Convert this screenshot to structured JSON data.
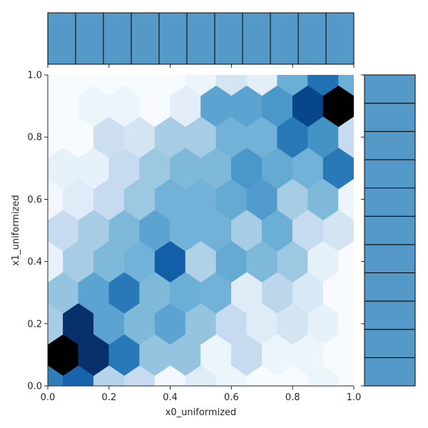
{
  "chart_data": {
    "type": "heatmap",
    "subtype": "hexbin-joint-plot",
    "title": "",
    "xlabel": "x0_uniformized",
    "ylabel": "x1_uniformized",
    "xlim": [
      0.0,
      1.0
    ],
    "ylim": [
      0.0,
      1.0
    ],
    "xticks": [
      "0.0",
      "0.2",
      "0.4",
      "0.6",
      "0.8",
      "1.0"
    ],
    "yticks": [
      "0.0",
      "0.2",
      "0.4",
      "0.6",
      "0.8",
      "1.0"
    ],
    "grid": false,
    "colormap": "Blues",
    "bar_color": "#5499c7",
    "marginal_x": {
      "orientation": "vertical",
      "bins": 11,
      "bin_edges": [
        0.0,
        0.0909,
        0.1818,
        0.2727,
        0.3636,
        0.4545,
        0.5455,
        0.6364,
        0.7273,
        0.8182,
        0.9091,
        1.0
      ],
      "counts_relative": [
        1,
        1,
        1,
        1,
        1,
        1,
        1,
        1,
        1,
        1,
        1
      ]
    },
    "marginal_y": {
      "orientation": "horizontal",
      "bins": 11,
      "bin_edges": [
        0.0,
        0.0909,
        0.1818,
        0.2727,
        0.3636,
        0.4545,
        0.5455,
        0.6364,
        0.7273,
        0.8182,
        0.9091,
        1.0
      ],
      "counts_relative": [
        1,
        1,
        1,
        1,
        1,
        1,
        1,
        1,
        1,
        1,
        1
      ]
    },
    "hexbin": {
      "gridsize": 10,
      "row_y": [
        0.0,
        0.1,
        0.2,
        0.3,
        0.4,
        0.5,
        0.6,
        0.7,
        0.8,
        0.9,
        1.0
      ],
      "even_row_x": [
        0.0,
        0.1,
        0.2,
        0.3,
        0.4,
        0.5,
        0.6,
        0.7,
        0.8,
        0.9,
        1.0
      ],
      "odd_row_x": [
        0.05,
        0.15,
        0.25,
        0.35,
        0.45,
        0.55,
        0.65,
        0.75,
        0.85,
        0.95
      ],
      "cells": [
        {
          "x": 0.0,
          "y": 0.0,
          "v": 0.7
        },
        {
          "x": 0.1,
          "y": 0.0,
          "v": 0.8
        },
        {
          "x": 0.2,
          "y": 0.0,
          "v": 0.3
        },
        {
          "x": 0.3,
          "y": 0.0,
          "v": 0.25
        },
        {
          "x": 0.4,
          "y": 0.0,
          "v": 0.02
        },
        {
          "x": 0.5,
          "y": 0.0,
          "v": 0.12
        },
        {
          "x": 0.6,
          "y": 0.0,
          "v": 0.05
        },
        {
          "x": 0.7,
          "y": 0.0,
          "v": 0.0
        },
        {
          "x": 0.8,
          "y": 0.0,
          "v": 0.0
        },
        {
          "x": 0.9,
          "y": 0.0,
          "v": 0.05
        },
        {
          "x": 1.0,
          "y": 0.0,
          "v": 0.0
        },
        {
          "x": 0.05,
          "y": 0.1,
          "v": 1.0
        },
        {
          "x": 0.15,
          "y": 0.1,
          "v": 0.95
        },
        {
          "x": 0.25,
          "y": 0.1,
          "v": 0.72
        },
        {
          "x": 0.35,
          "y": 0.1,
          "v": 0.4
        },
        {
          "x": 0.45,
          "y": 0.1,
          "v": 0.4
        },
        {
          "x": 0.55,
          "y": 0.1,
          "v": 0.05
        },
        {
          "x": 0.65,
          "y": 0.1,
          "v": 0.25
        },
        {
          "x": 0.75,
          "y": 0.1,
          "v": 0.05
        },
        {
          "x": 0.85,
          "y": 0.1,
          "v": 0.05
        },
        {
          "x": 0.95,
          "y": 0.1,
          "v": 0.0
        },
        {
          "x": 0.0,
          "y": 0.2,
          "v": 0.35
        },
        {
          "x": 0.1,
          "y": 0.2,
          "v": 0.95
        },
        {
          "x": 0.2,
          "y": 0.2,
          "v": 0.55
        },
        {
          "x": 0.3,
          "y": 0.2,
          "v": 0.45
        },
        {
          "x": 0.4,
          "y": 0.2,
          "v": 0.55
        },
        {
          "x": 0.5,
          "y": 0.2,
          "v": 0.4
        },
        {
          "x": 0.6,
          "y": 0.2,
          "v": 0.25
        },
        {
          "x": 0.7,
          "y": 0.2,
          "v": 0.12
        },
        {
          "x": 0.8,
          "y": 0.2,
          "v": 0.18
        },
        {
          "x": 0.9,
          "y": 0.2,
          "v": 0.08
        },
        {
          "x": 1.0,
          "y": 0.2,
          "v": 0.0
        },
        {
          "x": 0.05,
          "y": 0.3,
          "v": 0.4
        },
        {
          "x": 0.15,
          "y": 0.3,
          "v": 0.55
        },
        {
          "x": 0.25,
          "y": 0.3,
          "v": 0.72
        },
        {
          "x": 0.35,
          "y": 0.3,
          "v": 0.45
        },
        {
          "x": 0.45,
          "y": 0.3,
          "v": 0.5
        },
        {
          "x": 0.55,
          "y": 0.3,
          "v": 0.48
        },
        {
          "x": 0.65,
          "y": 0.3,
          "v": 0.12
        },
        {
          "x": 0.75,
          "y": 0.3,
          "v": 0.28
        },
        {
          "x": 0.85,
          "y": 0.3,
          "v": 0.15
        },
        {
          "x": 0.95,
          "y": 0.3,
          "v": 0.0
        },
        {
          "x": 0.0,
          "y": 0.4,
          "v": 0.08
        },
        {
          "x": 0.1,
          "y": 0.4,
          "v": 0.35
        },
        {
          "x": 0.2,
          "y": 0.4,
          "v": 0.45
        },
        {
          "x": 0.3,
          "y": 0.4,
          "v": 0.48
        },
        {
          "x": 0.4,
          "y": 0.4,
          "v": 0.82
        },
        {
          "x": 0.5,
          "y": 0.4,
          "v": 0.32
        },
        {
          "x": 0.6,
          "y": 0.4,
          "v": 0.52
        },
        {
          "x": 0.7,
          "y": 0.4,
          "v": 0.45
        },
        {
          "x": 0.8,
          "y": 0.4,
          "v": 0.38
        },
        {
          "x": 0.9,
          "y": 0.4,
          "v": 0.08
        },
        {
          "x": 1.0,
          "y": 0.4,
          "v": 0.0
        },
        {
          "x": 0.05,
          "y": 0.5,
          "v": 0.25
        },
        {
          "x": 0.15,
          "y": 0.5,
          "v": 0.35
        },
        {
          "x": 0.25,
          "y": 0.5,
          "v": 0.45
        },
        {
          "x": 0.35,
          "y": 0.5,
          "v": 0.55
        },
        {
          "x": 0.45,
          "y": 0.5,
          "v": 0.48
        },
        {
          "x": 0.55,
          "y": 0.5,
          "v": 0.48
        },
        {
          "x": 0.65,
          "y": 0.5,
          "v": 0.35
        },
        {
          "x": 0.75,
          "y": 0.5,
          "v": 0.5
        },
        {
          "x": 0.85,
          "y": 0.5,
          "v": 0.25
        },
        {
          "x": 0.95,
          "y": 0.5,
          "v": 0.18
        },
        {
          "x": 0.0,
          "y": 0.6,
          "v": 0.03
        },
        {
          "x": 0.1,
          "y": 0.6,
          "v": 0.12
        },
        {
          "x": 0.2,
          "y": 0.6,
          "v": 0.25
        },
        {
          "x": 0.3,
          "y": 0.6,
          "v": 0.38
        },
        {
          "x": 0.4,
          "y": 0.6,
          "v": 0.48
        },
        {
          "x": 0.5,
          "y": 0.6,
          "v": 0.48
        },
        {
          "x": 0.6,
          "y": 0.6,
          "v": 0.52
        },
        {
          "x": 0.7,
          "y": 0.6,
          "v": 0.58
        },
        {
          "x": 0.8,
          "y": 0.6,
          "v": 0.35
        },
        {
          "x": 0.9,
          "y": 0.6,
          "v": 0.45
        },
        {
          "x": 1.0,
          "y": 0.6,
          "v": 0.05
        },
        {
          "x": 0.05,
          "y": 0.7,
          "v": 0.08
        },
        {
          "x": 0.15,
          "y": 0.7,
          "v": 0.08
        },
        {
          "x": 0.25,
          "y": 0.7,
          "v": 0.25
        },
        {
          "x": 0.35,
          "y": 0.7,
          "v": 0.38
        },
        {
          "x": 0.45,
          "y": 0.7,
          "v": 0.45
        },
        {
          "x": 0.55,
          "y": 0.7,
          "v": 0.45
        },
        {
          "x": 0.65,
          "y": 0.7,
          "v": 0.6
        },
        {
          "x": 0.75,
          "y": 0.7,
          "v": 0.52
        },
        {
          "x": 0.85,
          "y": 0.7,
          "v": 0.48
        },
        {
          "x": 0.95,
          "y": 0.7,
          "v": 0.72
        },
        {
          "x": 0.0,
          "y": 0.8,
          "v": 0.0
        },
        {
          "x": 0.1,
          "y": 0.8,
          "v": 0.0
        },
        {
          "x": 0.2,
          "y": 0.8,
          "v": 0.22
        },
        {
          "x": 0.3,
          "y": 0.8,
          "v": 0.18
        },
        {
          "x": 0.4,
          "y": 0.8,
          "v": 0.35
        },
        {
          "x": 0.5,
          "y": 0.8,
          "v": 0.35
        },
        {
          "x": 0.6,
          "y": 0.8,
          "v": 0.48
        },
        {
          "x": 0.7,
          "y": 0.8,
          "v": 0.48
        },
        {
          "x": 0.8,
          "y": 0.8,
          "v": 0.72
        },
        {
          "x": 0.9,
          "y": 0.8,
          "v": 0.62
        },
        {
          "x": 1.0,
          "y": 0.8,
          "v": 0.25
        },
        {
          "x": 0.05,
          "y": 0.9,
          "v": 0.0
        },
        {
          "x": 0.15,
          "y": 0.9,
          "v": 0.05
        },
        {
          "x": 0.25,
          "y": 0.9,
          "v": 0.05
        },
        {
          "x": 0.35,
          "y": 0.9,
          "v": 0.0
        },
        {
          "x": 0.45,
          "y": 0.9,
          "v": 0.1
        },
        {
          "x": 0.55,
          "y": 0.9,
          "v": 0.55
        },
        {
          "x": 0.65,
          "y": 0.9,
          "v": 0.55
        },
        {
          "x": 0.75,
          "y": 0.9,
          "v": 0.6
        },
        {
          "x": 0.85,
          "y": 0.9,
          "v": 0.9
        },
        {
          "x": 0.95,
          "y": 0.9,
          "v": 1.0
        },
        {
          "x": 0.0,
          "y": 1.0,
          "v": 0.0
        },
        {
          "x": 0.1,
          "y": 1.0,
          "v": 0.0
        },
        {
          "x": 0.2,
          "y": 1.0,
          "v": 0.0
        },
        {
          "x": 0.3,
          "y": 1.0,
          "v": 0.0
        },
        {
          "x": 0.4,
          "y": 1.0,
          "v": 0.0
        },
        {
          "x": 0.5,
          "y": 1.0,
          "v": 0.05
        },
        {
          "x": 0.6,
          "y": 1.0,
          "v": 0.18
        },
        {
          "x": 0.7,
          "y": 1.0,
          "v": 0.1
        },
        {
          "x": 0.8,
          "y": 1.0,
          "v": 0.5
        },
        {
          "x": 0.9,
          "y": 1.0,
          "v": 0.75
        },
        {
          "x": 1.0,
          "y": 1.0,
          "v": 0.5
        }
      ]
    }
  }
}
